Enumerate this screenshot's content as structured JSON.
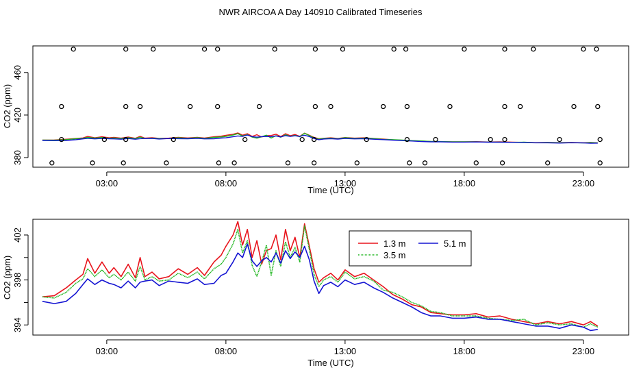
{
  "title": "NWR AIRCOA A  Day 140910  Calibrated Timeseries",
  "chart_data": [
    {
      "type": "scatter",
      "xlabel": "Time (UTC)",
      "ylabel": "CO2 (ppm)",
      "xlim": [
        -0.1,
        24.9
      ],
      "ylim": [
        371,
        485
      ],
      "xticks": [
        3,
        8,
        13,
        18,
        23
      ],
      "xtick_labels": [
        "03:00",
        "08:00",
        "13:00",
        "18:00",
        "23:00"
      ],
      "yticks": [
        380,
        420,
        460
      ],
      "ytick_labels": [
        "380",
        "420",
        "460"
      ],
      "calibration_points": [
        {
          "x": 1.6,
          "y": 482
        },
        {
          "x": 3.8,
          "y": 482
        },
        {
          "x": 4.95,
          "y": 482
        },
        {
          "x": 7.1,
          "y": 482
        },
        {
          "x": 7.65,
          "y": 482
        },
        {
          "x": 10.05,
          "y": 482
        },
        {
          "x": 11.75,
          "y": 482
        },
        {
          "x": 12.9,
          "y": 482
        },
        {
          "x": 15.05,
          "y": 482
        },
        {
          "x": 15.55,
          "y": 482
        },
        {
          "x": 18.0,
          "y": 482
        },
        {
          "x": 19.7,
          "y": 482
        },
        {
          "x": 20.9,
          "y": 482
        },
        {
          "x": 23.0,
          "y": 482
        },
        {
          "x": 23.55,
          "y": 482
        },
        {
          "x": 1.1,
          "y": 428
        },
        {
          "x": 3.8,
          "y": 428
        },
        {
          "x": 4.4,
          "y": 428
        },
        {
          "x": 6.5,
          "y": 428
        },
        {
          "x": 7.65,
          "y": 428
        },
        {
          "x": 9.4,
          "y": 428
        },
        {
          "x": 11.75,
          "y": 428
        },
        {
          "x": 12.4,
          "y": 428
        },
        {
          "x": 14.6,
          "y": 428
        },
        {
          "x": 15.6,
          "y": 428
        },
        {
          "x": 17.4,
          "y": 428
        },
        {
          "x": 19.7,
          "y": 428
        },
        {
          "x": 20.35,
          "y": 428
        },
        {
          "x": 22.6,
          "y": 428
        },
        {
          "x": 23.6,
          "y": 428
        },
        {
          "x": 1.1,
          "y": 397
        },
        {
          "x": 2.9,
          "y": 397
        },
        {
          "x": 3.8,
          "y": 397
        },
        {
          "x": 5.8,
          "y": 397
        },
        {
          "x": 8.8,
          "y": 397
        },
        {
          "x": 11.2,
          "y": 397
        },
        {
          "x": 11.7,
          "y": 397
        },
        {
          "x": 13.9,
          "y": 397
        },
        {
          "x": 15.6,
          "y": 397
        },
        {
          "x": 16.8,
          "y": 397
        },
        {
          "x": 19.1,
          "y": 397
        },
        {
          "x": 19.7,
          "y": 397
        },
        {
          "x": 22.0,
          "y": 397
        },
        {
          "x": 23.7,
          "y": 397
        },
        {
          "x": 0.7,
          "y": 375
        },
        {
          "x": 2.4,
          "y": 375
        },
        {
          "x": 3.7,
          "y": 375
        },
        {
          "x": 5.5,
          "y": 375
        },
        {
          "x": 7.7,
          "y": 375
        },
        {
          "x": 8.35,
          "y": 375
        },
        {
          "x": 10.6,
          "y": 375
        },
        {
          "x": 11.7,
          "y": 375
        },
        {
          "x": 13.5,
          "y": 375
        },
        {
          "x": 15.7,
          "y": 375
        },
        {
          "x": 16.35,
          "y": 375
        },
        {
          "x": 18.5,
          "y": 375
        },
        {
          "x": 19.6,
          "y": 375
        },
        {
          "x": 21.5,
          "y": 375
        },
        {
          "x": 23.7,
          "y": 375
        }
      ]
    },
    {
      "type": "line",
      "xlabel": "Time (UTC)",
      "ylabel": "CO2 (ppm)",
      "xlim": [
        -0.1,
        24.9
      ],
      "ylim": [
        393.1,
        403.4
      ],
      "xticks": [
        3,
        8,
        13,
        18,
        23
      ],
      "xtick_labels": [
        "03:00",
        "08:00",
        "13:00",
        "18:00",
        "23:00"
      ],
      "yticks": [
        394,
        396,
        398,
        400,
        402
      ],
      "ytick_labels": [
        "394",
        "",
        "398",
        "",
        "402"
      ],
      "legend": {
        "position": "top-right"
      },
      "series": [
        {
          "name": "1.3 m",
          "color": "#e8141c",
          "x": [
            0.3,
            0.8,
            1.3,
            1.7,
            2.0,
            2.2,
            2.5,
            2.8,
            3.1,
            3.3,
            3.6,
            3.9,
            4.2,
            4.4,
            4.6,
            4.9,
            5.2,
            5.6,
            6.0,
            6.4,
            6.8,
            7.1,
            7.5,
            7.8,
            8.0,
            8.3,
            8.5,
            8.7,
            8.9,
            9.1,
            9.3,
            9.5,
            9.7,
            9.9,
            10.1,
            10.3,
            10.5,
            10.7,
            10.9,
            11.1,
            11.3,
            11.5,
            11.7,
            11.9,
            12.1,
            12.4,
            12.7,
            13.0,
            13.4,
            13.8,
            14.2,
            14.6,
            15.0,
            15.4,
            15.8,
            16.2,
            16.6,
            17.0,
            17.5,
            18.0,
            18.5,
            19.0,
            19.5,
            20.0,
            20.5,
            21.0,
            21.5,
            22.0,
            22.5,
            23.0,
            23.3,
            23.6
          ],
          "values": [
            396.5,
            396.6,
            397.3,
            398.0,
            398.5,
            399.9,
            398.6,
            399.6,
            398.6,
            399.1,
            398.3,
            399.4,
            398.2,
            400.0,
            398.3,
            398.7,
            398.1,
            398.3,
            399.0,
            398.5,
            399.1,
            398.4,
            399.6,
            400.2,
            401.0,
            402.0,
            403.2,
            401.1,
            402.5,
            400.0,
            401.5,
            399.4,
            400.6,
            400.8,
            402.0,
            399.8,
            402.5,
            400.6,
            401.8,
            400.0,
            403.0,
            401.0,
            399.0,
            397.8,
            398.2,
            398.6,
            398.0,
            398.9,
            398.3,
            398.6,
            398.0,
            397.4,
            396.7,
            396.3,
            395.8,
            395.6,
            395.1,
            395.0,
            394.9,
            394.9,
            395.0,
            394.7,
            394.8,
            394.5,
            394.3,
            394.1,
            394.3,
            394.1,
            394.3,
            394.0,
            394.3,
            393.9
          ]
        },
        {
          "name": "3.5 m",
          "color": "#1fb61f",
          "x": [
            0.3,
            0.8,
            1.3,
            1.7,
            2.0,
            2.2,
            2.5,
            2.8,
            3.1,
            3.3,
            3.6,
            3.9,
            4.2,
            4.4,
            4.6,
            4.9,
            5.2,
            5.6,
            6.0,
            6.4,
            6.8,
            7.1,
            7.5,
            7.8,
            8.0,
            8.3,
            8.5,
            8.7,
            8.9,
            9.1,
            9.3,
            9.5,
            9.7,
            9.9,
            10.1,
            10.3,
            10.5,
            10.7,
            10.9,
            11.1,
            11.3,
            11.5,
            11.7,
            11.9,
            12.1,
            12.4,
            12.7,
            13.0,
            13.4,
            13.8,
            14.2,
            14.6,
            15.0,
            15.4,
            15.8,
            16.2,
            16.6,
            17.0,
            17.5,
            18.0,
            18.5,
            19.0,
            19.5,
            20.0,
            20.5,
            21.0,
            21.5,
            22.0,
            22.5,
            23.0,
            23.3,
            23.6
          ],
          "values": [
            396.5,
            396.4,
            396.9,
            397.7,
            398.1,
            399.0,
            398.3,
            398.9,
            398.2,
            398.5,
            398.0,
            398.7,
            397.9,
            399.2,
            398.0,
            398.3,
            397.9,
            398.0,
            398.6,
            398.2,
            398.7,
            398.1,
            399.0,
            399.4,
            400.0,
            401.2,
            402.5,
            400.4,
            401.5,
            399.3,
            398.3,
            399.6,
            401.1,
            398.4,
            400.6,
            399.2,
            401.4,
            400.0,
            400.9,
            399.6,
            402.8,
            400.7,
            398.5,
            397.4,
            398.0,
            398.3,
            397.8,
            398.7,
            398.1,
            398.3,
            397.9,
            397.1,
            396.9,
            396.5,
            396.0,
            395.7,
            395.2,
            395.1,
            394.8,
            394.8,
            394.8,
            394.6,
            394.5,
            394.4,
            394.5,
            394.0,
            394.2,
            394.0,
            394.1,
            393.8,
            394.1,
            393.8
          ]
        },
        {
          "name": "5.1 m",
          "color": "#1414d2",
          "x": [
            0.3,
            0.8,
            1.3,
            1.7,
            2.0,
            2.2,
            2.5,
            2.8,
            3.1,
            3.3,
            3.6,
            3.9,
            4.2,
            4.4,
            4.6,
            4.9,
            5.2,
            5.6,
            6.0,
            6.4,
            6.8,
            7.1,
            7.5,
            7.8,
            8.0,
            8.3,
            8.5,
            8.7,
            8.9,
            9.1,
            9.3,
            9.5,
            9.7,
            9.9,
            10.1,
            10.3,
            10.5,
            10.7,
            10.9,
            11.1,
            11.3,
            11.5,
            11.7,
            11.9,
            12.1,
            12.4,
            12.7,
            13.0,
            13.4,
            13.8,
            14.2,
            14.6,
            15.0,
            15.4,
            15.8,
            16.2,
            16.6,
            17.0,
            17.5,
            18.0,
            18.5,
            19.0,
            19.5,
            20.0,
            20.5,
            21.0,
            21.5,
            22.0,
            22.5,
            23.0,
            23.3,
            23.6
          ],
          "values": [
            396.1,
            395.9,
            396.1,
            396.8,
            397.6,
            398.1,
            397.6,
            398.0,
            397.7,
            397.6,
            397.3,
            397.9,
            397.3,
            397.8,
            397.9,
            398.0,
            397.5,
            397.9,
            397.8,
            397.7,
            398.1,
            397.6,
            397.7,
            398.4,
            398.6,
            399.6,
            400.4,
            400.0,
            401.2,
            399.7,
            399.2,
            399.7,
            400.0,
            399.6,
            400.4,
            399.5,
            400.6,
            399.9,
            400.5,
            400.0,
            401.0,
            399.8,
            397.9,
            396.8,
            397.5,
            397.8,
            397.4,
            398.0,
            397.6,
            397.8,
            397.3,
            396.9,
            396.4,
            396.0,
            395.6,
            395.1,
            394.8,
            394.8,
            394.6,
            394.6,
            394.7,
            394.5,
            394.5,
            394.3,
            394.1,
            393.9,
            393.9,
            393.7,
            394.0,
            393.8,
            393.5,
            393.6
          ]
        }
      ]
    }
  ]
}
